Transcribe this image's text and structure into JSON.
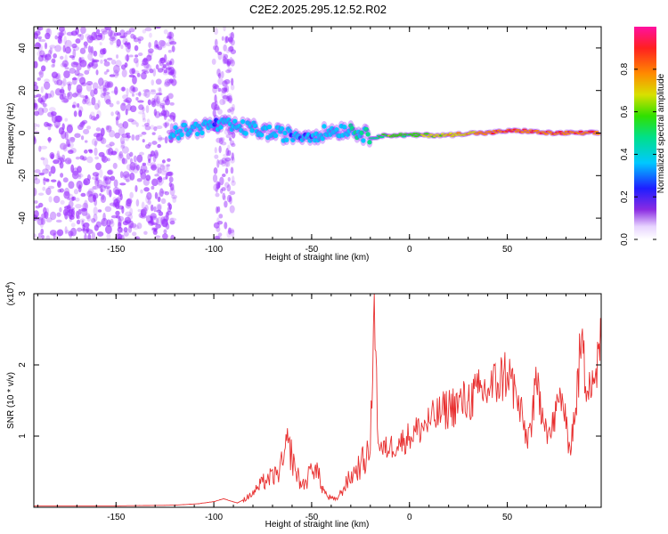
{
  "title": "C2E2.2025.295.12.52.R02",
  "colors": {
    "scatter_base": "#9b30ff",
    "snr_line": "#e83030",
    "axes": "#000000"
  },
  "chart_data": [
    {
      "type": "heatmap",
      "title": "",
      "xlabel": "Height of straight line (km)",
      "ylabel": "Frequency (Hz)",
      "xlim": [
        -192,
        98
      ],
      "ylim": [
        -50,
        50
      ],
      "xticks": [
        -150,
        -100,
        -50,
        0,
        50
      ],
      "yticks": [
        -40,
        -20,
        0,
        20,
        40
      ],
      "colorbar": {
        "label": "Normalized spectral amplitude",
        "range": [
          0,
          1
        ],
        "ticks": [
          "0.0",
          "0.2",
          "0.4",
          "0.6",
          "0.8"
        ]
      },
      "ridge": [
        {
          "x": -120,
          "y": 0,
          "amp": 0.45
        },
        {
          "x": -110,
          "y": 2,
          "amp": 0.45
        },
        {
          "x": -100,
          "y": 4,
          "amp": 0.4
        },
        {
          "x": -90,
          "y": 3,
          "amp": 0.45
        },
        {
          "x": -80,
          "y": 2,
          "amp": 0.45
        },
        {
          "x": -70,
          "y": 0,
          "amp": 0.45
        },
        {
          "x": -60,
          "y": -1,
          "amp": 0.4
        },
        {
          "x": -50,
          "y": -1,
          "amp": 0.4
        },
        {
          "x": -40,
          "y": 1,
          "amp": 0.45
        },
        {
          "x": -30,
          "y": 2,
          "amp": 0.5
        },
        {
          "x": -20,
          "y": -2,
          "amp": 0.55
        },
        {
          "x": -10,
          "y": -1,
          "amp": 0.7
        },
        {
          "x": 0,
          "y": -1,
          "amp": 0.65
        },
        {
          "x": 10,
          "y": -1,
          "amp": 0.75
        },
        {
          "x": 20,
          "y": -1,
          "amp": 0.8
        },
        {
          "x": 30,
          "y": 0,
          "amp": 0.85
        },
        {
          "x": 40,
          "y": 0,
          "amp": 0.9
        },
        {
          "x": 50,
          "y": 1,
          "amp": 0.92
        },
        {
          "x": 60,
          "y": 1,
          "amp": 0.95
        },
        {
          "x": 70,
          "y": 0,
          "amp": 0.95
        },
        {
          "x": 80,
          "y": 0,
          "amp": 0.95
        },
        {
          "x": 90,
          "y": 0,
          "amp": 0.95
        }
      ]
    },
    {
      "type": "line",
      "title": "",
      "xlabel": "Height of straight line (km)",
      "ylabel": "SNR (10 * v/v)",
      "y_multiplier": "(x10",
      "y_multiplier_exp": "4",
      "xlim": [
        -192,
        98
      ],
      "ylim": [
        0,
        3
      ],
      "xticks": [
        -150,
        -100,
        -50,
        0,
        50
      ],
      "yticks": [
        1,
        2,
        3
      ],
      "series": [
        {
          "name": "SNR",
          "x": [
            -192,
            -150,
            -120,
            -108,
            -100,
            -95,
            -88,
            -82,
            -78,
            -75,
            -72,
            -68,
            -65,
            -62,
            -60,
            -58,
            -55,
            -52,
            -50,
            -48,
            -45,
            -42,
            -38,
            -35,
            -32,
            -28,
            -25,
            -22,
            -20,
            -18,
            -16,
            -14,
            -10,
            -5,
            0,
            5,
            10,
            15,
            20,
            25,
            30,
            35,
            40,
            45,
            48,
            50,
            52,
            55,
            58,
            60,
            62,
            65,
            68,
            70,
            72,
            75,
            78,
            80,
            82,
            85,
            88,
            90,
            92,
            95,
            98
          ],
          "y": [
            0.02,
            0.02,
            0.03,
            0.05,
            0.08,
            0.12,
            0.06,
            0.15,
            0.25,
            0.35,
            0.4,
            0.45,
            0.6,
            0.9,
            0.7,
            0.5,
            0.3,
            0.4,
            0.55,
            0.6,
            0.3,
            0.15,
            0.1,
            0.2,
            0.35,
            0.5,
            0.6,
            0.7,
            0.8,
            3.0,
            0.9,
            0.8,
            0.85,
            0.9,
            1.0,
            1.1,
            1.2,
            1.3,
            1.4,
            1.45,
            1.5,
            1.6,
            1.65,
            1.75,
            1.85,
            1.9,
            1.8,
            1.5,
            1.2,
            0.95,
            1.15,
            1.7,
            1.4,
            1.15,
            1.0,
            1.35,
            1.6,
            1.1,
            0.85,
            1.4,
            2.4,
            1.7,
            1.9,
            1.85,
            2.3
          ]
        }
      ]
    }
  ]
}
